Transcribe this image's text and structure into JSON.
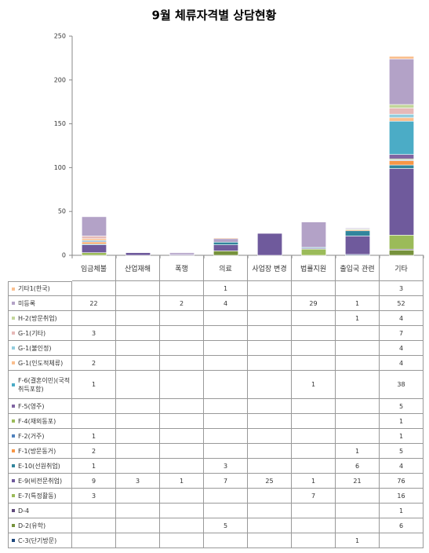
{
  "chart_data": {
    "type": "stacked_bar",
    "title": "9월 체류자격별 상담현황",
    "categories": [
      "임금체불",
      "산업재해",
      "폭행",
      "의료",
      "사업장 변경",
      "법률지원",
      "출입국 관련",
      "기타"
    ],
    "ylim": [
      0,
      250
    ],
    "yticks": [
      0,
      50,
      100,
      150,
      200,
      250
    ],
    "grid": false,
    "series": [
      {
        "name": "기타1(한국)",
        "color": "#fac090",
        "values": [
          null,
          null,
          null,
          1,
          null,
          null,
          null,
          3
        ]
      },
      {
        "name": "미등록",
        "color": "#b3a2c7",
        "values": [
          22,
          null,
          2,
          4,
          null,
          29,
          1,
          52
        ]
      },
      {
        "name": "H-2(방문취업)",
        "color": "#c3d69b",
        "values": [
          null,
          null,
          null,
          null,
          null,
          null,
          1,
          4
        ]
      },
      {
        "name": "G-1(기타)",
        "color": "#e6b9b8",
        "values": [
          3,
          null,
          null,
          null,
          null,
          null,
          null,
          7
        ]
      },
      {
        "name": "G-1(불인정)",
        "color": "#93cddd",
        "values": [
          null,
          null,
          null,
          null,
          null,
          null,
          null,
          4
        ]
      },
      {
        "name": "G-1(인도적체류)",
        "color": "#fabf8f",
        "values": [
          2,
          null,
          null,
          null,
          null,
          null,
          null,
          4
        ]
      },
      {
        "name": "F-6(결혼이민)(국적취득포함)",
        "color": "#4bacc6",
        "values": [
          1,
          null,
          null,
          null,
          null,
          1,
          null,
          38
        ]
      },
      {
        "name": "F-5(영주)",
        "color": "#8064a2",
        "values": [
          null,
          null,
          null,
          null,
          null,
          null,
          null,
          5
        ]
      },
      {
        "name": "F-4(재외동포)",
        "color": "#9bbb59",
        "values": [
          null,
          null,
          null,
          null,
          null,
          null,
          null,
          1
        ]
      },
      {
        "name": "F-2(거주)",
        "color": "#4f81bd",
        "values": [
          1,
          null,
          null,
          null,
          null,
          null,
          null,
          1
        ]
      },
      {
        "name": "F-1(방문동거)",
        "color": "#f79646",
        "values": [
          2,
          null,
          null,
          null,
          null,
          null,
          1,
          5
        ]
      },
      {
        "name": "E-10(선원취업)",
        "color": "#31859c",
        "values": [
          1,
          null,
          null,
          3,
          null,
          null,
          6,
          4
        ]
      },
      {
        "name": "E-9(비전문취업)",
        "color": "#6f5a9c",
        "values": [
          9,
          3,
          1,
          7,
          25,
          1,
          21,
          76
        ]
      },
      {
        "name": "E-7(특정활동)",
        "color": "#9bbb59",
        "values": [
          3,
          null,
          null,
          null,
          null,
          7,
          null,
          16
        ]
      },
      {
        "name": "D-4",
        "color": "#604a7b",
        "values": [
          null,
          null,
          null,
          null,
          null,
          null,
          null,
          1
        ]
      },
      {
        "name": "D-2(유학)",
        "color": "#76923c",
        "values": [
          null,
          null,
          null,
          5,
          null,
          null,
          null,
          6
        ]
      },
      {
        "name": "C-3(단기방문)",
        "color": "#1f497d",
        "values": [
          null,
          null,
          null,
          null,
          null,
          null,
          1,
          null
        ]
      }
    ]
  }
}
